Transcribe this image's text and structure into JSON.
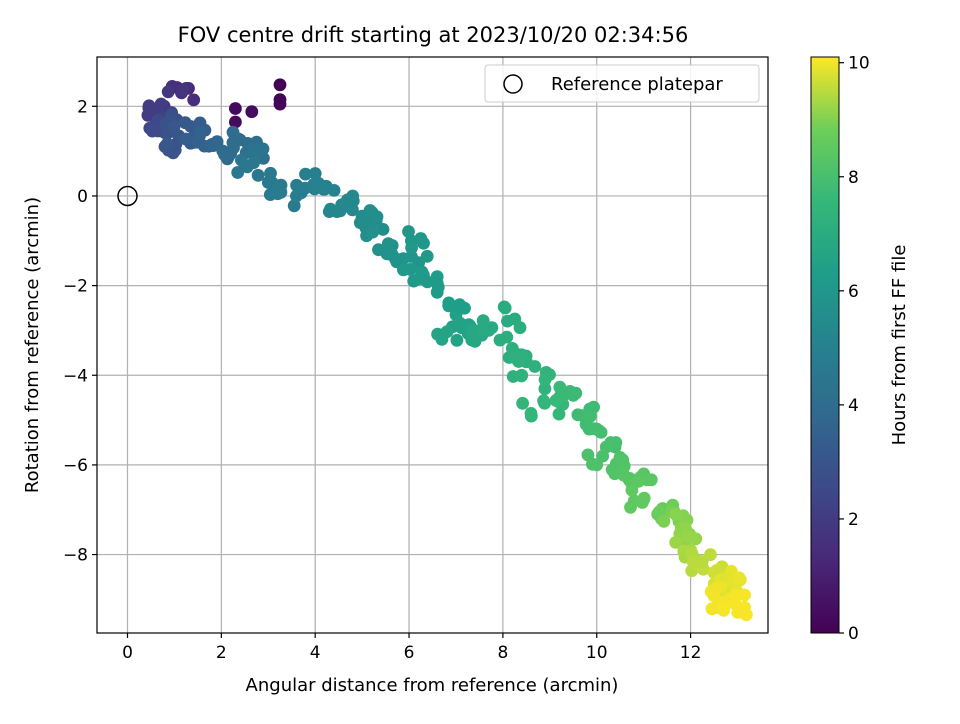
{
  "chart_data": {
    "type": "scatter",
    "title": "FOV centre drift starting at 2023/10/20 02:34:56",
    "xlabel": "Angular distance from reference (arcmin)",
    "ylabel": "Rotation from reference (arcmin)",
    "xlim": [
      -0.65,
      13.65
    ],
    "ylim": [
      -9.75,
      3.1
    ],
    "xticks": [
      0,
      2,
      4,
      6,
      8,
      10,
      12
    ],
    "yticks": [
      -8,
      -6,
      -4,
      -2,
      0,
      2
    ],
    "grid": true,
    "legend": {
      "placement": "top-right",
      "entries": [
        "Reference platepar"
      ]
    },
    "colorbar": {
      "label": "Hours from first FF file",
      "colormap": "viridis",
      "range": [
        0,
        10.1
      ],
      "ticks": [
        0,
        2,
        4,
        6,
        8,
        10
      ]
    },
    "reference_point": {
      "name": "Reference platepar",
      "x": 0,
      "y": 0
    },
    "scatter_series": {
      "anchors": [
        [
          3.25,
          2.48,
          0.05
        ],
        [
          3.25,
          2.15,
          0.1
        ],
        [
          3.25,
          2.05,
          0.15
        ],
        [
          2.3,
          1.95,
          0.3
        ],
        [
          2.3,
          1.65,
          0.35
        ],
        [
          2.65,
          1.88,
          0.4
        ],
        [
          1.3,
          2.4,
          1.3
        ],
        [
          1.15,
          2.3,
          1.6
        ],
        [
          0.65,
          1.85,
          2.0
        ],
        [
          0.75,
          1.75,
          2.2
        ],
        [
          0.6,
          1.6,
          2.4
        ],
        [
          0.65,
          1.45,
          2.6
        ],
        [
          1.05,
          1.7,
          2.8
        ],
        [
          0.85,
          1.4,
          2.9
        ],
        [
          0.8,
          1.1,
          3.0
        ],
        [
          1.35,
          1.55,
          3.2
        ],
        [
          1.4,
          1.3,
          3.3
        ],
        [
          1.5,
          1.2,
          3.5
        ],
        [
          1.8,
          1.15,
          3.7
        ],
        [
          2.2,
          0.95,
          3.9
        ],
        [
          2.4,
          1.25,
          4.0
        ],
        [
          2.75,
          1.2,
          4.1
        ],
        [
          2.8,
          0.95,
          4.3
        ],
        [
          2.55,
          0.65,
          4.5
        ],
        [
          3.0,
          0.3,
          4.6
        ],
        [
          3.2,
          0.05,
          4.7
        ],
        [
          3.6,
          0.0,
          4.8
        ],
        [
          4.0,
          0.5,
          4.9
        ],
        [
          4.2,
          0.15,
          5.0
        ],
        [
          4.3,
          -0.35,
          5.2
        ],
        [
          4.8,
          0.0,
          5.3
        ],
        [
          5.0,
          -0.45,
          5.4
        ],
        [
          5.1,
          -0.7,
          5.5
        ],
        [
          5.3,
          -0.55,
          5.6
        ],
        [
          5.35,
          -1.2,
          5.7
        ],
        [
          5.6,
          -1.3,
          5.8
        ],
        [
          6.05,
          -1.35,
          5.9
        ],
        [
          6.25,
          -0.95,
          6.0
        ],
        [
          6.1,
          -1.9,
          6.1
        ],
        [
          6.6,
          -1.8,
          6.2
        ],
        [
          6.85,
          -2.4,
          6.3
        ],
        [
          7.0,
          -2.65,
          6.4
        ],
        [
          7.3,
          -2.9,
          6.5
        ],
        [
          6.7,
          -3.2,
          6.6
        ],
        [
          7.5,
          -3.1,
          6.7
        ],
        [
          7.7,
          -3.0,
          6.9
        ],
        [
          8.05,
          -2.5,
          7.0
        ],
        [
          8.2,
          -3.4,
          7.1
        ],
        [
          8.5,
          -3.7,
          7.2
        ],
        [
          8.4,
          -4.0,
          7.3
        ],
        [
          8.9,
          -4.1,
          7.4
        ],
        [
          8.6,
          -4.85,
          7.5
        ],
        [
          9.2,
          -4.5,
          7.6
        ],
        [
          9.5,
          -4.45,
          7.7
        ],
        [
          9.7,
          -4.9,
          7.8
        ],
        [
          10.0,
          -5.2,
          7.9
        ],
        [
          10.3,
          -5.5,
          8.0
        ],
        [
          10.0,
          -6.0,
          8.1
        ],
        [
          10.5,
          -5.9,
          8.2
        ],
        [
          10.7,
          -6.3,
          8.3
        ],
        [
          11.0,
          -6.2,
          8.4
        ],
        [
          10.8,
          -6.8,
          8.5
        ],
        [
          11.3,
          -7.1,
          8.7
        ],
        [
          11.6,
          -7.05,
          8.9
        ],
        [
          11.8,
          -7.4,
          9.1
        ],
        [
          12.0,
          -7.9,
          9.3
        ],
        [
          12.2,
          -8.2,
          9.5
        ],
        [
          12.5,
          -8.4,
          9.7
        ],
        [
          12.7,
          -8.8,
          9.8
        ],
        [
          12.9,
          -8.6,
          9.9
        ],
        [
          12.6,
          -9.05,
          10.0
        ],
        [
          12.95,
          -9.1,
          10.05
        ]
      ],
      "note": ""
    }
  }
}
